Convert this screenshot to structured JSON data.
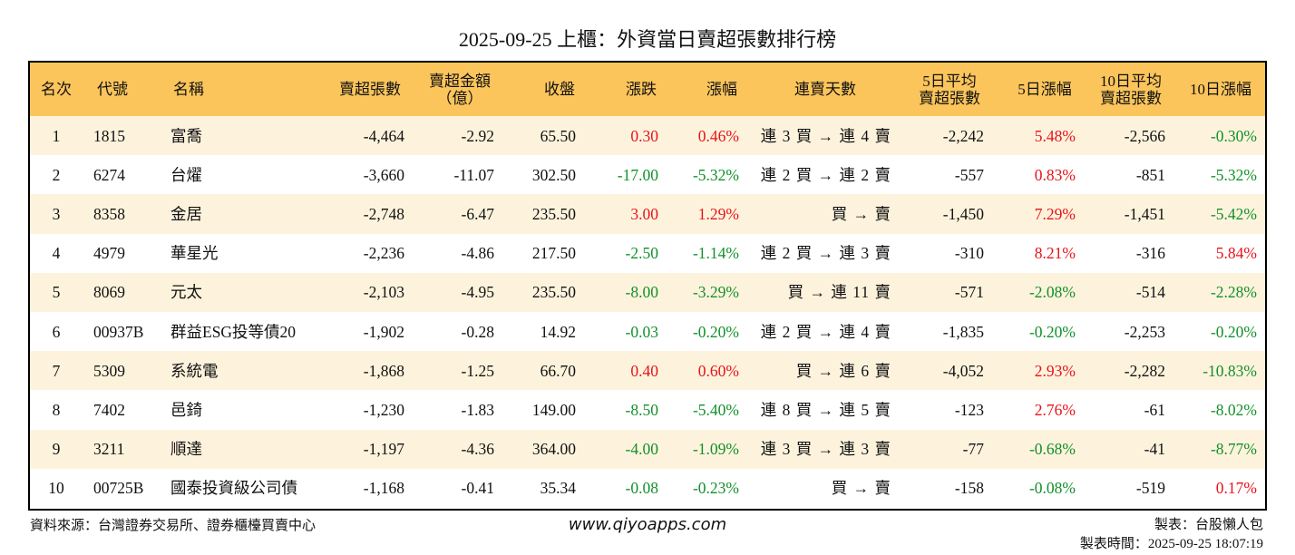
{
  "title": "2025-09-25 上櫃：外資當日賣超張數排行榜",
  "table": {
    "columns": [
      [
        "名次"
      ],
      [
        "代號"
      ],
      [
        "名稱"
      ],
      [
        "賣超張數"
      ],
      [
        "賣超金額",
        "（億）"
      ],
      [
        "收盤"
      ],
      [
        "漲跌"
      ],
      [
        "漲幅"
      ],
      [
        "連賣天數"
      ],
      [
        "5日平均",
        "賣超張數"
      ],
      [
        "5日漲幅"
      ],
      [
        "10日平均",
        "賣超張數"
      ],
      [
        "10日漲幅"
      ]
    ],
    "rows": [
      [
        "1",
        "1815",
        "富喬",
        "-4,464",
        "-2.92",
        "65.50",
        "0.30",
        "0.46%",
        "連 3 買 → 連 4 賣",
        "-2,242",
        "5.48%",
        "-2,566",
        "-0.30%"
      ],
      [
        "2",
        "6274",
        "台燿",
        "-3,660",
        "-11.07",
        "302.50",
        "-17.00",
        "-5.32%",
        "連 2 買 → 連 2 賣",
        "-557",
        "0.83%",
        "-851",
        "-5.32%"
      ],
      [
        "3",
        "8358",
        "金居",
        "-2,748",
        "-6.47",
        "235.50",
        "3.00",
        "1.29%",
        "買 → 賣",
        "-1,450",
        "7.29%",
        "-1,451",
        "-5.42%"
      ],
      [
        "4",
        "4979",
        "華星光",
        "-2,236",
        "-4.86",
        "217.50",
        "-2.50",
        "-1.14%",
        "連 2 買 → 連 3 賣",
        "-310",
        "8.21%",
        "-316",
        "5.84%"
      ],
      [
        "5",
        "8069",
        "元太",
        "-2,103",
        "-4.95",
        "235.50",
        "-8.00",
        "-3.29%",
        "買 → 連 11 賣",
        "-571",
        "-2.08%",
        "-514",
        "-2.28%"
      ],
      [
        "6",
        "00937B",
        "群益ESG投等債20",
        "-1,902",
        "-0.28",
        "14.92",
        "-0.03",
        "-0.20%",
        "連 2 買 → 連 4 賣",
        "-1,835",
        "-0.20%",
        "-2,253",
        "-0.20%"
      ],
      [
        "7",
        "5309",
        "系統電",
        "-1,868",
        "-1.25",
        "66.70",
        "0.40",
        "0.60%",
        "買 → 連 6 賣",
        "-4,052",
        "2.93%",
        "-2,282",
        "-10.83%"
      ],
      [
        "8",
        "7402",
        "邑錡",
        "-1,230",
        "-1.83",
        "149.00",
        "-8.50",
        "-5.40%",
        "連 8 買 → 連 5 賣",
        "-123",
        "2.76%",
        "-61",
        "-8.02%"
      ],
      [
        "9",
        "3211",
        "順達",
        "-1,197",
        "-4.36",
        "364.00",
        "-4.00",
        "-1.09%",
        "連 3 買 → 連 3 賣",
        "-77",
        "-0.68%",
        "-41",
        "-8.77%"
      ],
      [
        "10",
        "00725B",
        "國泰投資級公司債",
        "-1,168",
        "-0.41",
        "35.34",
        "-0.08",
        "-0.23%",
        "買 → 賣",
        "-158",
        "-0.08%",
        "-519",
        "0.17%"
      ]
    ]
  },
  "footer": {
    "source": "資料來源：台灣證券交易所、證券櫃檯買賣中心",
    "website": "www.qiyoapps.com",
    "maker": "製表：台股懶人包",
    "time": "製表時間：2025-09-25 18:07:19"
  }
}
